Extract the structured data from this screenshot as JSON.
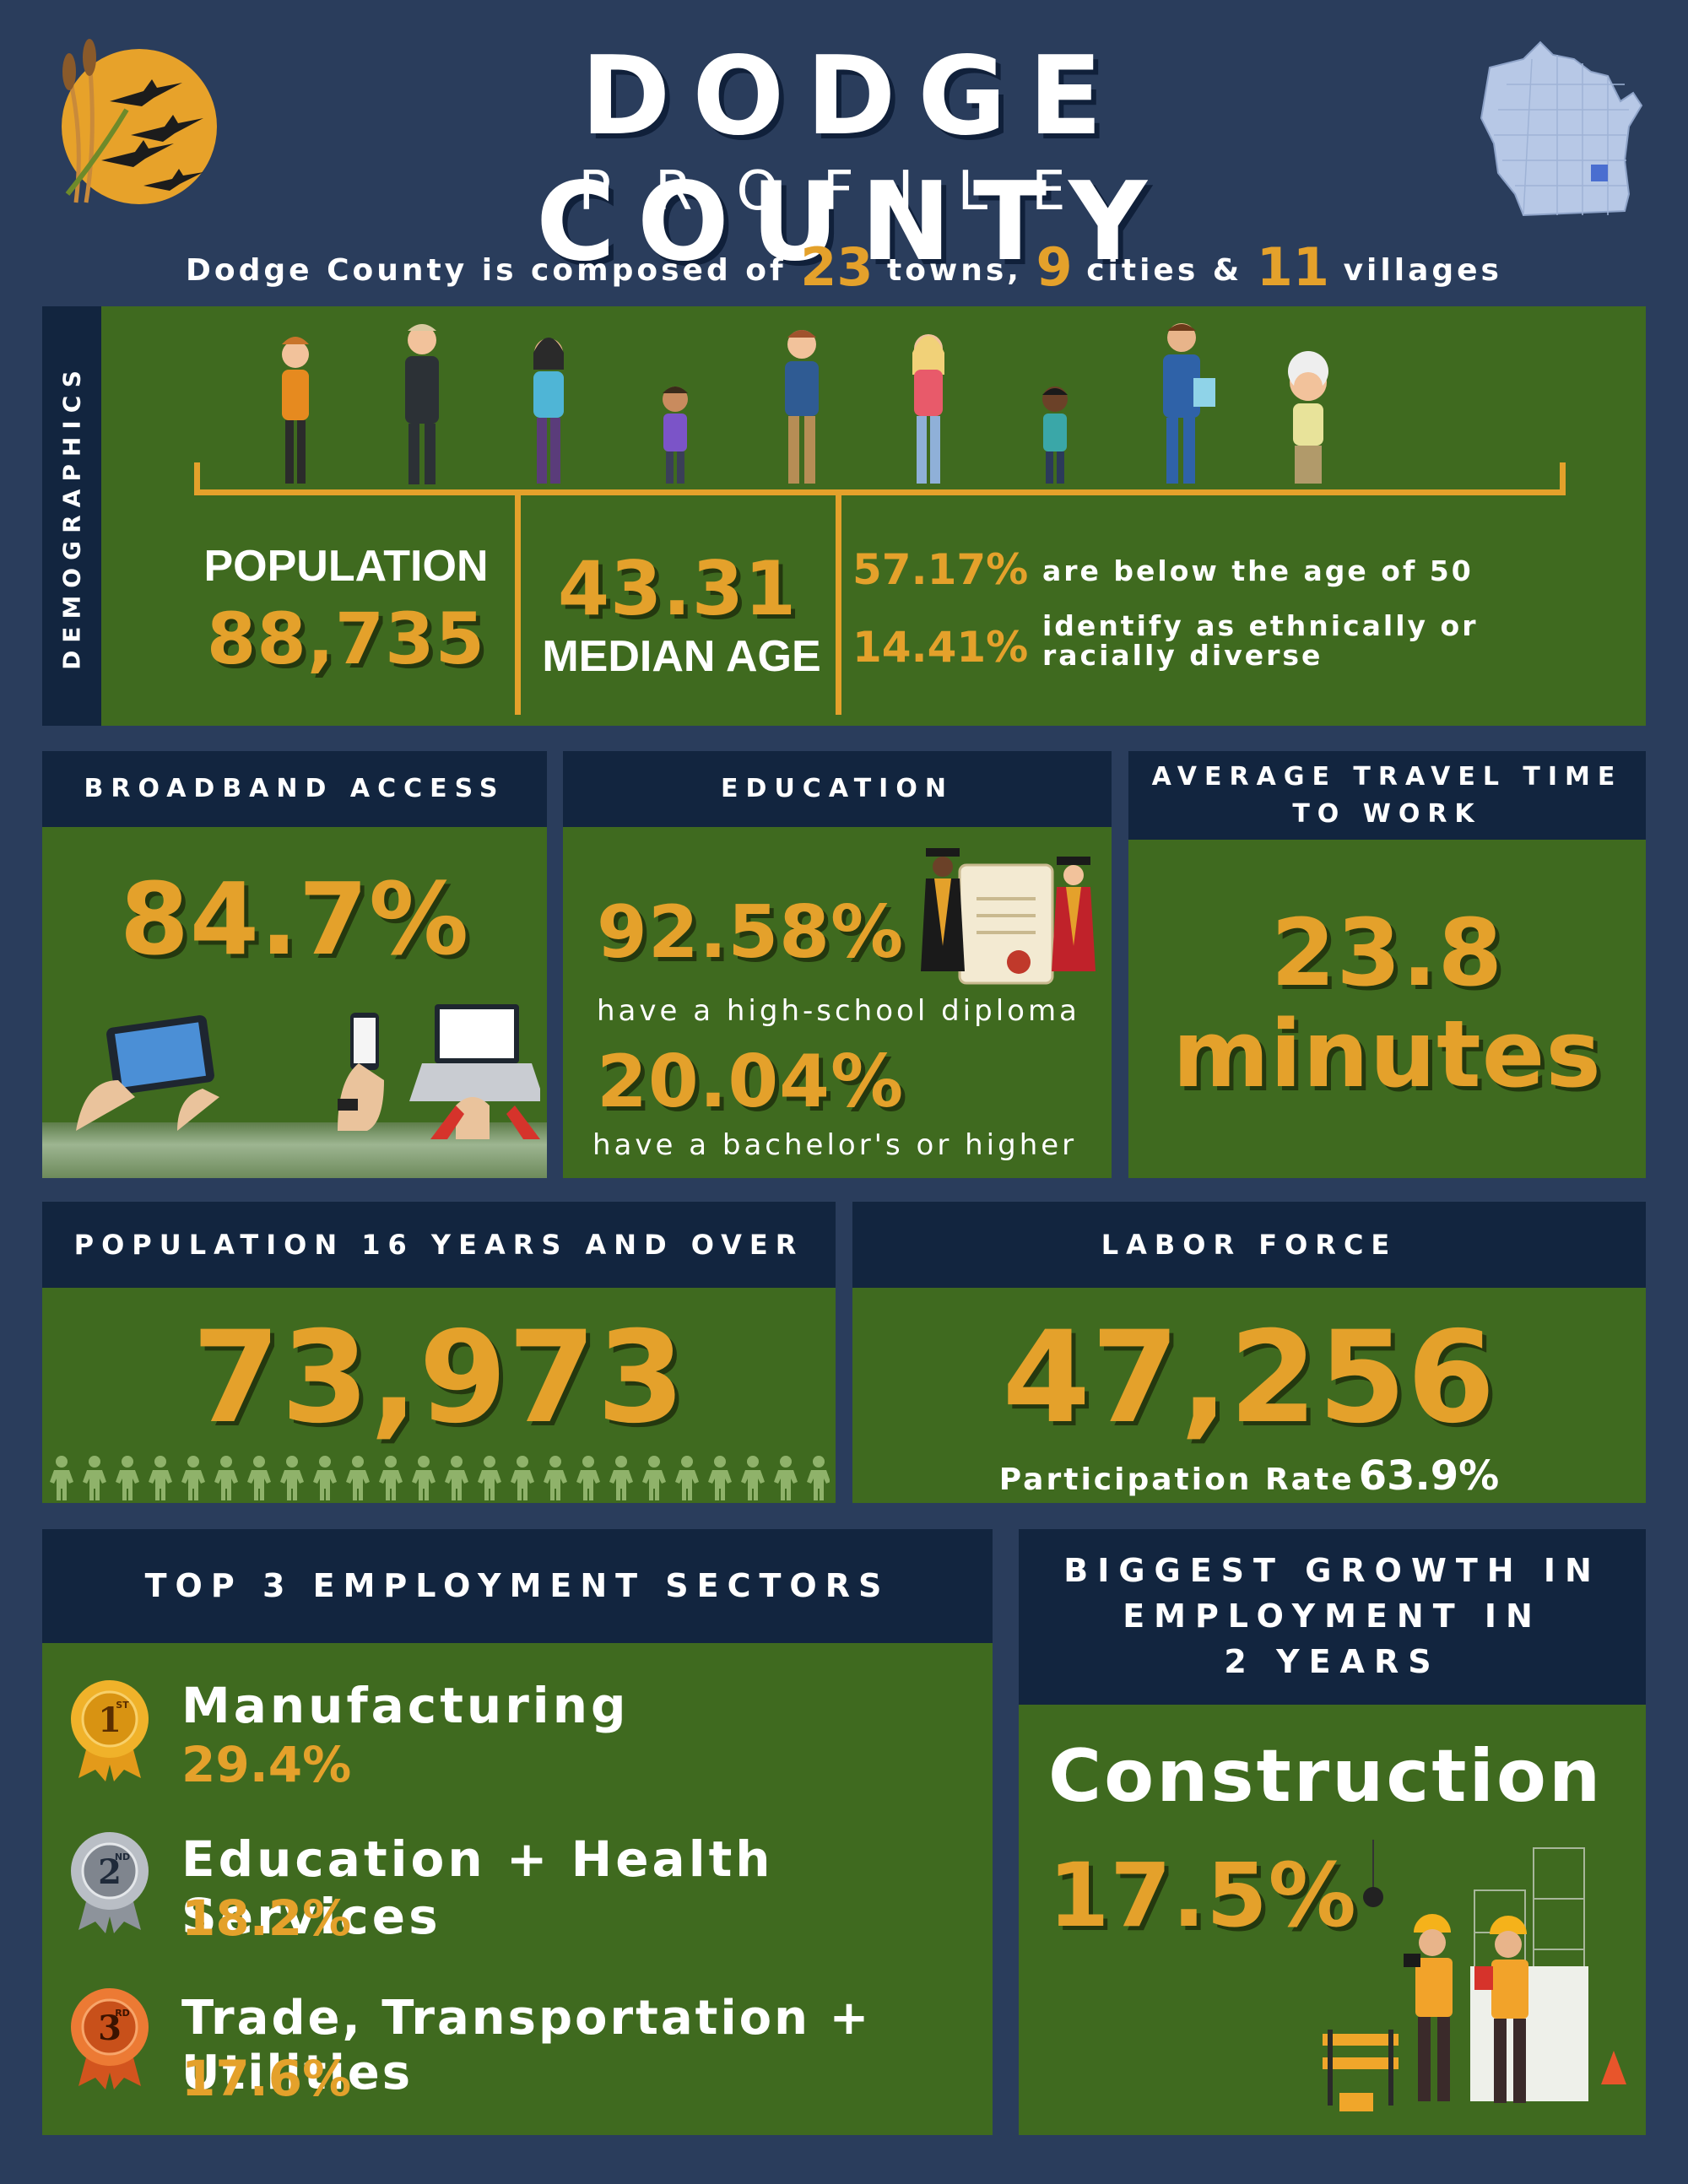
{
  "header": {
    "title": "DODGE COUNTY",
    "subtitle": "PROFILE",
    "composed_prefix": "Dodge County is composed of",
    "towns_count": "23",
    "towns_label": "towns,",
    "cities_count": "9",
    "cities_label": "cities &",
    "villages_count": "11",
    "villages_label": "villages"
  },
  "demographics": {
    "side_label": "DEMOGRAPHICS",
    "population_label": "POPULATION",
    "population_value": "88,735",
    "median_age_value": "43.31",
    "median_age_label": "MEDIAN AGE",
    "below_50_value": "57.17%",
    "below_50_label": "are below the age of 50",
    "diverse_value": "14.41%",
    "diverse_label_1": "identify as ethnically or",
    "diverse_label_2": "racially diverse"
  },
  "broadband": {
    "header": "BROADBAND ACCESS",
    "value": "84.7%"
  },
  "education": {
    "header": "EDUCATION",
    "hs_value": "92.58%",
    "hs_label": "have a high-school diploma",
    "ba_value": "20.04%",
    "ba_label": "have a bachelor's or higher"
  },
  "travel": {
    "header_1": "AVERAGE TRAVEL TIME",
    "header_2": "TO WORK",
    "value": "23.8",
    "unit": "minutes"
  },
  "pop16": {
    "header": "POPULATION 16 YEARS AND OVER",
    "value": "73,973"
  },
  "labor": {
    "header": "LABOR FORCE",
    "value": "47,256",
    "rate_label": "Participation Rate",
    "rate_value": "63.9%"
  },
  "sectors": {
    "header": "TOP 3 EMPLOYMENT SECTORS",
    "items": [
      {
        "rank": "1",
        "suffix": "ST",
        "name": "Manufacturing",
        "value": "29.4%",
        "color": "#e9a21d"
      },
      {
        "rank": "2",
        "suffix": "ND",
        "name": "Education + Health Services",
        "value": "18.2%",
        "color": "#9aa0a8"
      },
      {
        "rank": "3",
        "suffix": "RD",
        "name": "Trade, Transportation + Utilities",
        "value": "17.6%",
        "color": "#e2662a"
      }
    ]
  },
  "growth": {
    "header_1": "BIGGEST GROWTH IN",
    "header_2": "EMPLOYMENT IN",
    "header_3": "2 YEARS",
    "sector": "Construction",
    "value": "17.5%"
  },
  "colors": {
    "background": "#2a3d5c",
    "panel_green": "#3f6a1f",
    "header_navy": "#12253f",
    "accent_gold": "#e4a12b"
  }
}
